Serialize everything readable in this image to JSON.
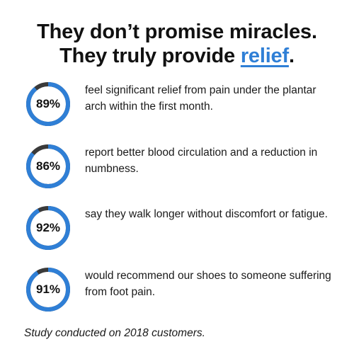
{
  "headline": {
    "line1": "They don’t promise miracles.",
    "line2_prefix": "They truly provide ",
    "line2_highlight": "relief",
    "line2_suffix": "."
  },
  "colors": {
    "accent": "#2f7fd6",
    "ring_dark": "#3a3a3a",
    "text": "#111111"
  },
  "stats": [
    {
      "percent_label": "89%",
      "percent_value": 89,
      "text": "feel significant relief from pain under the plantar arch within the first month."
    },
    {
      "percent_label": "86%",
      "percent_value": 86,
      "text": "report better blood circulation and a reduction in numbness."
    },
    {
      "percent_label": "92%",
      "percent_value": 92,
      "text": "say they walk longer without discomfort or fatigue."
    },
    {
      "percent_label": "91%",
      "percent_value": 91,
      "text": "would recommend our shoes to someone suffering from foot pain."
    }
  ],
  "footnote": "Study conducted on 2018 customers."
}
